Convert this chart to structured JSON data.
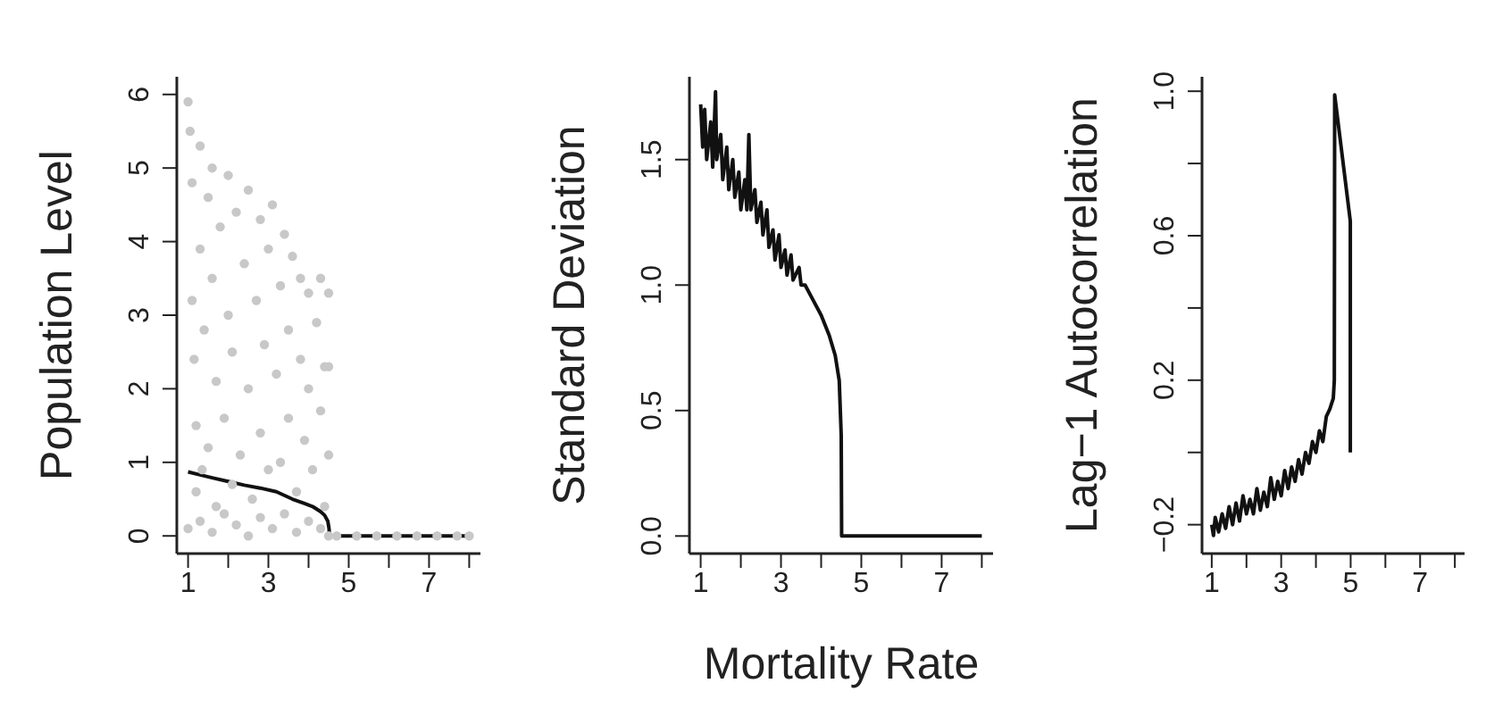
{
  "chart_data": [
    {
      "type": "scatter",
      "ylabel": "Population Level",
      "xlim": [
        0.72,
        8.28
      ],
      "ylim": [
        -0.24,
        6.24
      ],
      "xticks": [
        1,
        {
          "value": 2,
          "label": null
        },
        3,
        {
          "value": 4,
          "label": null
        },
        5,
        {
          "value": 6,
          "label": null
        },
        7,
        {
          "value": 8,
          "label": null
        }
      ],
      "yticks": [
        0,
        1,
        2,
        3,
        4,
        5,
        6
      ],
      "series": [
        {
          "type": "scatter",
          "color": "#c8c8c8",
          "x": [
            1.0,
            1.05,
            1.1,
            1.1,
            1.15,
            1.2,
            1.2,
            1.3,
            1.3,
            1.35,
            1.4,
            1.5,
            1.5,
            1.6,
            1.6,
            1.7,
            1.7,
            1.8,
            1.9,
            2.0,
            2.0,
            2.1,
            2.1,
            2.2,
            2.3,
            2.4,
            2.5,
            2.5,
            2.6,
            2.7,
            2.8,
            2.8,
            2.9,
            3.0,
            3.0,
            3.1,
            3.2,
            3.3,
            3.3,
            3.4,
            3.5,
            3.5,
            3.6,
            3.7,
            3.8,
            3.8,
            3.9,
            4.0,
            4.0,
            4.1,
            4.2,
            4.3,
            4.3,
            4.4,
            4.4,
            4.5,
            4.5,
            4.5,
            1.0,
            1.3,
            1.6,
            1.9,
            2.2,
            2.5,
            2.8,
            3.1,
            3.4,
            3.7,
            4.0,
            4.3,
            4.5,
            4.7,
            5.2,
            5.7,
            6.2,
            6.7,
            7.2,
            7.7,
            8.0
          ],
          "values": [
            5.9,
            5.5,
            4.8,
            3.2,
            2.4,
            1.5,
            0.6,
            5.3,
            3.9,
            0.9,
            2.8,
            4.6,
            1.2,
            5.0,
            3.5,
            2.1,
            0.4,
            4.2,
            1.6,
            4.9,
            3.0,
            2.5,
            0.7,
            4.4,
            1.1,
            3.7,
            4.7,
            2.0,
            0.5,
            3.2,
            4.3,
            1.4,
            2.6,
            3.9,
            0.9,
            4.5,
            2.2,
            3.4,
            1.0,
            4.1,
            2.8,
            1.6,
            3.8,
            0.6,
            2.4,
            3.5,
            1.3,
            3.3,
            2.0,
            0.9,
            2.9,
            3.5,
            1.7,
            2.3,
            0.4,
            3.3,
            1.1,
            2.3,
            0.1,
            0.2,
            0.05,
            0.3,
            0.15,
            0,
            0.25,
            0.1,
            0.3,
            0.05,
            0.2,
            0.1,
            0,
            0,
            0,
            0,
            0,
            0,
            0,
            0,
            0
          ]
        },
        {
          "type": "line",
          "color": "#111111",
          "x": [
            1,
            1.3,
            1.6,
            2,
            2.4,
            2.8,
            3.2,
            3.6,
            3.9,
            4.1,
            4.3,
            4.4,
            4.48,
            4.51,
            4.52,
            5,
            6,
            7,
            8
          ],
          "values": [
            0.87,
            0.83,
            0.79,
            0.74,
            0.69,
            0.65,
            0.6,
            0.5,
            0.44,
            0.4,
            0.33,
            0.28,
            0.2,
            0.1,
            0,
            0,
            0,
            0,
            0
          ]
        }
      ]
    },
    {
      "type": "line",
      "ylabel": "Standard Deviation",
      "xlabel": "Mortality Rate",
      "xlim": [
        0.72,
        8.28
      ],
      "ylim": [
        -0.07,
        1.83
      ],
      "xticks": [
        1,
        {
          "value": 2,
          "label": null
        },
        3,
        {
          "value": 4,
          "label": null
        },
        5,
        {
          "value": 6,
          "label": null
        },
        7,
        {
          "value": 8,
          "label": null
        }
      ],
      "yticks": [
        {
          "value": 0,
          "label": "0.0"
        },
        0.5,
        {
          "value": 1,
          "label": "1.0"
        },
        1.5
      ],
      "series": [
        {
          "color": "#111111",
          "x": [
            1.0,
            1.05,
            1.1,
            1.15,
            1.25,
            1.3,
            1.37,
            1.4,
            1.5,
            1.55,
            1.65,
            1.7,
            1.8,
            1.85,
            1.95,
            2.0,
            2.1,
            2.15,
            2.2,
            2.25,
            2.35,
            2.4,
            2.5,
            2.55,
            2.65,
            2.7,
            2.8,
            2.85,
            2.95,
            3.0,
            3.1,
            3.15,
            3.25,
            3.3,
            3.45,
            3.5,
            3.6,
            3.8,
            4.0,
            4.2,
            4.35,
            4.45,
            4.5,
            4.51,
            5,
            6,
            7,
            8
          ],
          "values": [
            1.72,
            1.55,
            1.7,
            1.5,
            1.65,
            1.47,
            1.77,
            1.5,
            1.6,
            1.42,
            1.55,
            1.38,
            1.5,
            1.35,
            1.45,
            1.3,
            1.42,
            1.3,
            1.6,
            1.3,
            1.38,
            1.25,
            1.33,
            1.2,
            1.3,
            1.15,
            1.22,
            1.1,
            1.2,
            1.07,
            1.14,
            1.04,
            1.12,
            1.02,
            1.07,
            1.0,
            1.0,
            0.94,
            0.88,
            0.8,
            0.72,
            0.62,
            0.4,
            0,
            0,
            0,
            0,
            0
          ]
        }
      ]
    },
    {
      "type": "line",
      "ylabel": "Lag−1 Autocorrelation",
      "xlim": [
        0.72,
        8.28
      ],
      "ylim": [
        -0.28,
        1.04
      ],
      "xticks": [
        1,
        {
          "value": 2,
          "label": null
        },
        3,
        {
          "value": 4,
          "label": null
        },
        5,
        {
          "value": 6,
          "label": null
        },
        7,
        {
          "value": 8,
          "label": null
        }
      ],
      "yticks": [
        {
          "value": -0.2,
          "label": "−0.2"
        },
        {
          "value": 0,
          "label": null
        },
        0.2,
        {
          "value": 0.4,
          "label": null
        },
        0.6,
        {
          "value": 0.8,
          "label": null
        },
        {
          "value": 1,
          "label": "1.0"
        }
      ],
      "series": [
        {
          "color": "#111111",
          "x": [
            1.0,
            1.05,
            1.1,
            1.2,
            1.3,
            1.4,
            1.5,
            1.6,
            1.7,
            1.8,
            1.9,
            2.0,
            2.1,
            2.2,
            2.3,
            2.4,
            2.5,
            2.6,
            2.7,
            2.8,
            2.9,
            3.0,
            3.1,
            3.2,
            3.3,
            3.4,
            3.5,
            3.6,
            3.7,
            3.8,
            3.9,
            4.0,
            4.1,
            4.2,
            4.3,
            4.4,
            4.5,
            4.53,
            4.54,
            4.99,
            4.99
          ],
          "values": [
            -0.2,
            -0.23,
            -0.18,
            -0.22,
            -0.17,
            -0.21,
            -0.15,
            -0.2,
            -0.14,
            -0.19,
            -0.12,
            -0.17,
            -0.13,
            -0.17,
            -0.1,
            -0.16,
            -0.11,
            -0.15,
            -0.07,
            -0.13,
            -0.08,
            -0.12,
            -0.05,
            -0.1,
            -0.04,
            -0.08,
            -0.02,
            -0.06,
            0.0,
            -0.03,
            0.03,
            0.0,
            0.06,
            0.03,
            0.1,
            0.12,
            0.15,
            0.2,
            0.99,
            0.64,
            0.0
          ]
        }
      ]
    }
  ]
}
